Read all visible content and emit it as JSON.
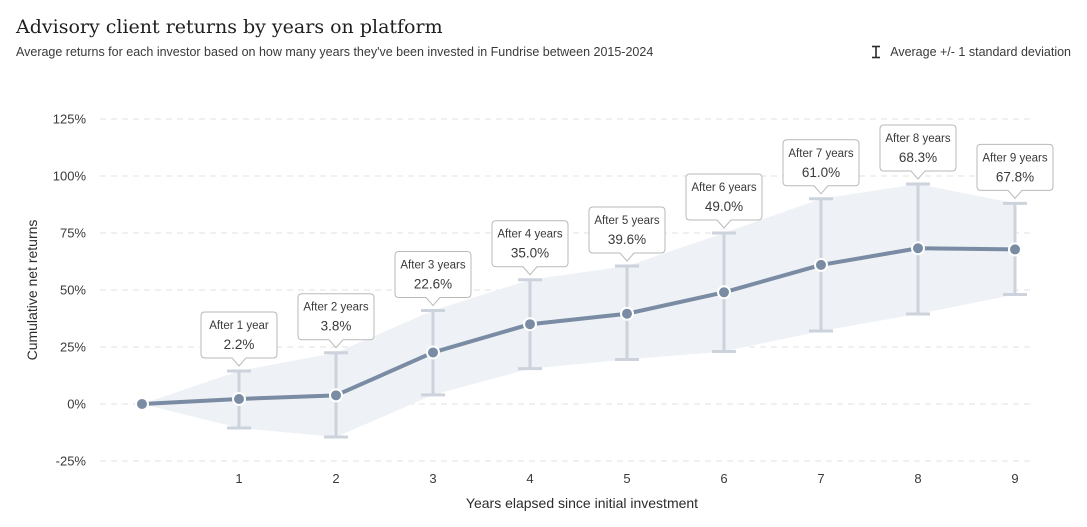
{
  "header": {
    "title": "Advisory client returns by years on platform",
    "subtitle": "Average returns for each investor based on how many years they've been invested in Fundrise between 2015-2024"
  },
  "legend": {
    "label": "Average +/- 1 standard deviation",
    "icon": "error-bar-icon"
  },
  "colors": {
    "line": "#7a8ca3",
    "band": "#eef1f5",
    "error_bar": "#cdd3dc",
    "grid": "#e2e2e2",
    "callout_border": "#b9b9b9",
    "text": "#3a3a3a"
  },
  "chart_data": {
    "type": "line",
    "title": "Advisory client returns by years on platform",
    "xlabel": "Years elapsed since initial investment",
    "ylabel": "Cumulative net returns",
    "x": [
      0,
      1,
      2,
      3,
      4,
      5,
      6,
      7,
      8,
      9
    ],
    "x_tick_labels": [
      "1",
      "2",
      "3",
      "4",
      "5",
      "6",
      "7",
      "8",
      "9"
    ],
    "y_ticks": [
      -25,
      0,
      25,
      50,
      75,
      100,
      125
    ],
    "y_tick_labels": [
      "-25%",
      "0%",
      "25%",
      "50%",
      "75%",
      "100%",
      "125%"
    ],
    "ylim": [
      -25,
      125
    ],
    "grid": true,
    "series": [
      {
        "name": "Average",
        "values": [
          0,
          2.2,
          3.8,
          22.6,
          35.0,
          39.6,
          49.0,
          61.0,
          68.3,
          67.8
        ],
        "upper": [
          0,
          14.5,
          22.5,
          41.0,
          54.5,
          60.5,
          75.0,
          90.0,
          96.5,
          88.0
        ],
        "lower": [
          0,
          -10.5,
          -14.5,
          4.0,
          15.5,
          19.5,
          23.0,
          32.0,
          39.5,
          48.0
        ]
      }
    ],
    "annotations": [
      {
        "x": 1,
        "title": "After 1 year",
        "value": "2.2%"
      },
      {
        "x": 2,
        "title": "After 2 years",
        "value": "3.8%"
      },
      {
        "x": 3,
        "title": "After 3 years",
        "value": "22.6%"
      },
      {
        "x": 4,
        "title": "After 4 years",
        "value": "35.0%"
      },
      {
        "x": 5,
        "title": "After 5 years",
        "value": "39.6%"
      },
      {
        "x": 6,
        "title": "After 6 years",
        "value": "49.0%"
      },
      {
        "x": 7,
        "title": "After 7 years",
        "value": "61.0%"
      },
      {
        "x": 8,
        "title": "After 8 years",
        "value": "68.3%"
      },
      {
        "x": 9,
        "title": "After 9 years",
        "value": "67.8%"
      }
    ],
    "legend_position": "top-right"
  }
}
